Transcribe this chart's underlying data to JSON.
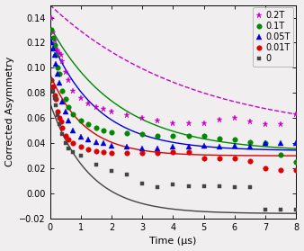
{
  "title": "",
  "xlabel": "Time (μs)",
  "ylabel": "Corrected Asymmetry",
  "xlim": [
    0,
    8
  ],
  "ylim": [
    -0.02,
    0.15
  ],
  "yticks": [
    -0.02,
    0.0,
    0.02,
    0.04,
    0.06,
    0.08,
    0.1,
    0.12,
    0.14
  ],
  "xticks": [
    0,
    1,
    2,
    3,
    4,
    5,
    6,
    7,
    8
  ],
  "bg_color": "#f0eeee",
  "series": [
    {
      "label": "0.2T",
      "color": "#cc00cc",
      "marker": "*",
      "markersize": 4.5,
      "data_x": [
        0.05,
        0.1,
        0.15,
        0.2,
        0.25,
        0.3,
        0.35,
        0.4,
        0.5,
        0.6,
        0.75,
        1.0,
        1.25,
        1.5,
        1.75,
        2.0,
        2.5,
        3.0,
        3.5,
        4.0,
        4.5,
        5.0,
        5.5,
        6.0,
        6.5,
        7.0,
        7.5,
        8.0
      ],
      "data_y": [
        0.14,
        0.128,
        0.122,
        0.115,
        0.114,
        0.112,
        0.11,
        0.105,
        0.097,
        0.09,
        0.082,
        0.076,
        0.072,
        0.069,
        0.067,
        0.065,
        0.062,
        0.06,
        0.058,
        0.056,
        0.056,
        0.056,
        0.059,
        0.06,
        0.057,
        0.055,
        0.055,
        0.063
      ],
      "fit_A": 0.105,
      "fit_lam": 0.22,
      "fit_C": 0.045,
      "dashed_fit": true,
      "fit_linewidth": 1.0
    },
    {
      "label": "0.1T",
      "color": "#008800",
      "marker": "o",
      "markersize": 4.0,
      "data_x": [
        0.05,
        0.1,
        0.15,
        0.2,
        0.25,
        0.3,
        0.4,
        0.5,
        0.6,
        0.75,
        1.0,
        1.25,
        1.5,
        1.75,
        2.0,
        2.5,
        3.0,
        3.5,
        4.0,
        4.5,
        5.0,
        5.5,
        6.0,
        6.5,
        7.0,
        7.5,
        8.0
      ],
      "data_y": [
        0.13,
        0.124,
        0.118,
        0.11,
        0.1,
        0.095,
        0.082,
        0.075,
        0.069,
        0.063,
        0.058,
        0.055,
        0.052,
        0.05,
        0.049,
        0.048,
        0.047,
        0.046,
        0.046,
        0.046,
        0.046,
        0.044,
        0.043,
        0.041,
        0.04,
        0.031,
        0.025
      ],
      "fit_A": 0.1,
      "fit_lam": 0.45,
      "fit_C": 0.033,
      "dashed_fit": false,
      "fit_linewidth": 1.0
    },
    {
      "label": "0.05T",
      "color": "#0000dd",
      "marker": "^",
      "markersize": 4.0,
      "data_x": [
        0.05,
        0.1,
        0.15,
        0.2,
        0.25,
        0.3,
        0.4,
        0.5,
        0.6,
        0.75,
        1.0,
        1.25,
        1.5,
        1.75,
        2.0,
        2.5,
        3.0,
        3.5,
        4.0,
        4.5,
        5.0,
        5.5,
        6.0,
        6.5,
        7.0,
        7.5,
        8.0
      ],
      "data_y": [
        0.12,
        0.115,
        0.11,
        0.103,
        0.095,
        0.088,
        0.073,
        0.065,
        0.058,
        0.05,
        0.045,
        0.043,
        0.041,
        0.04,
        0.038,
        0.037,
        0.036,
        0.036,
        0.037,
        0.037,
        0.038,
        0.037,
        0.038,
        0.037,
        0.04,
        0.04,
        0.04
      ],
      "fit_A": 0.09,
      "fit_lam": 0.65,
      "fit_C": 0.034,
      "dashed_fit": false,
      "fit_linewidth": 1.0
    },
    {
      "label": "0.01T",
      "color": "#dd0000",
      "marker": "o",
      "markersize": 4.0,
      "data_x": [
        0.05,
        0.1,
        0.15,
        0.2,
        0.25,
        0.3,
        0.35,
        0.4,
        0.5,
        0.6,
        0.75,
        1.0,
        1.25,
        1.5,
        1.75,
        2.0,
        2.5,
        3.0,
        3.5,
        4.0,
        4.5,
        5.0,
        5.5,
        6.0,
        6.5,
        7.0,
        7.5,
        8.0
      ],
      "data_y": [
        0.09,
        0.085,
        0.078,
        0.075,
        0.065,
        0.06,
        0.057,
        0.052,
        0.046,
        0.043,
        0.04,
        0.037,
        0.035,
        0.034,
        0.033,
        0.032,
        0.032,
        0.032,
        0.032,
        0.033,
        0.033,
        0.028,
        0.028,
        0.028,
        0.026,
        0.02,
        0.019,
        0.019
      ],
      "fit_A": 0.065,
      "fit_lam": 0.9,
      "fit_C": 0.03,
      "dashed_fit": false,
      "fit_linewidth": 1.0
    },
    {
      "label": "0",
      "color": "#444444",
      "marker": "s",
      "markersize": 3.5,
      "data_x": [
        0.05,
        0.1,
        0.15,
        0.2,
        0.25,
        0.3,
        0.4,
        0.5,
        0.6,
        0.75,
        1.0,
        1.5,
        2.0,
        2.5,
        3.0,
        3.5,
        4.0,
        4.5,
        5.0,
        5.5,
        6.0,
        6.5,
        7.0,
        7.5,
        8.0
      ],
      "data_y": [
        0.09,
        0.082,
        0.076,
        0.07,
        0.062,
        0.055,
        0.047,
        0.04,
        0.036,
        0.033,
        0.03,
        0.023,
        0.018,
        0.015,
        0.008,
        0.005,
        0.007,
        0.006,
        0.006,
        0.006,
        0.005,
        0.005,
        -0.013,
        -0.013,
        -0.013
      ],
      "fit_A": 0.088,
      "fit_lam": 0.8,
      "fit_C": -0.016,
      "dashed_fit": false,
      "fit_linewidth": 1.0
    }
  ],
  "legend_loc": "upper right",
  "figsize": [
    3.38,
    2.79
  ],
  "dpi": 100
}
